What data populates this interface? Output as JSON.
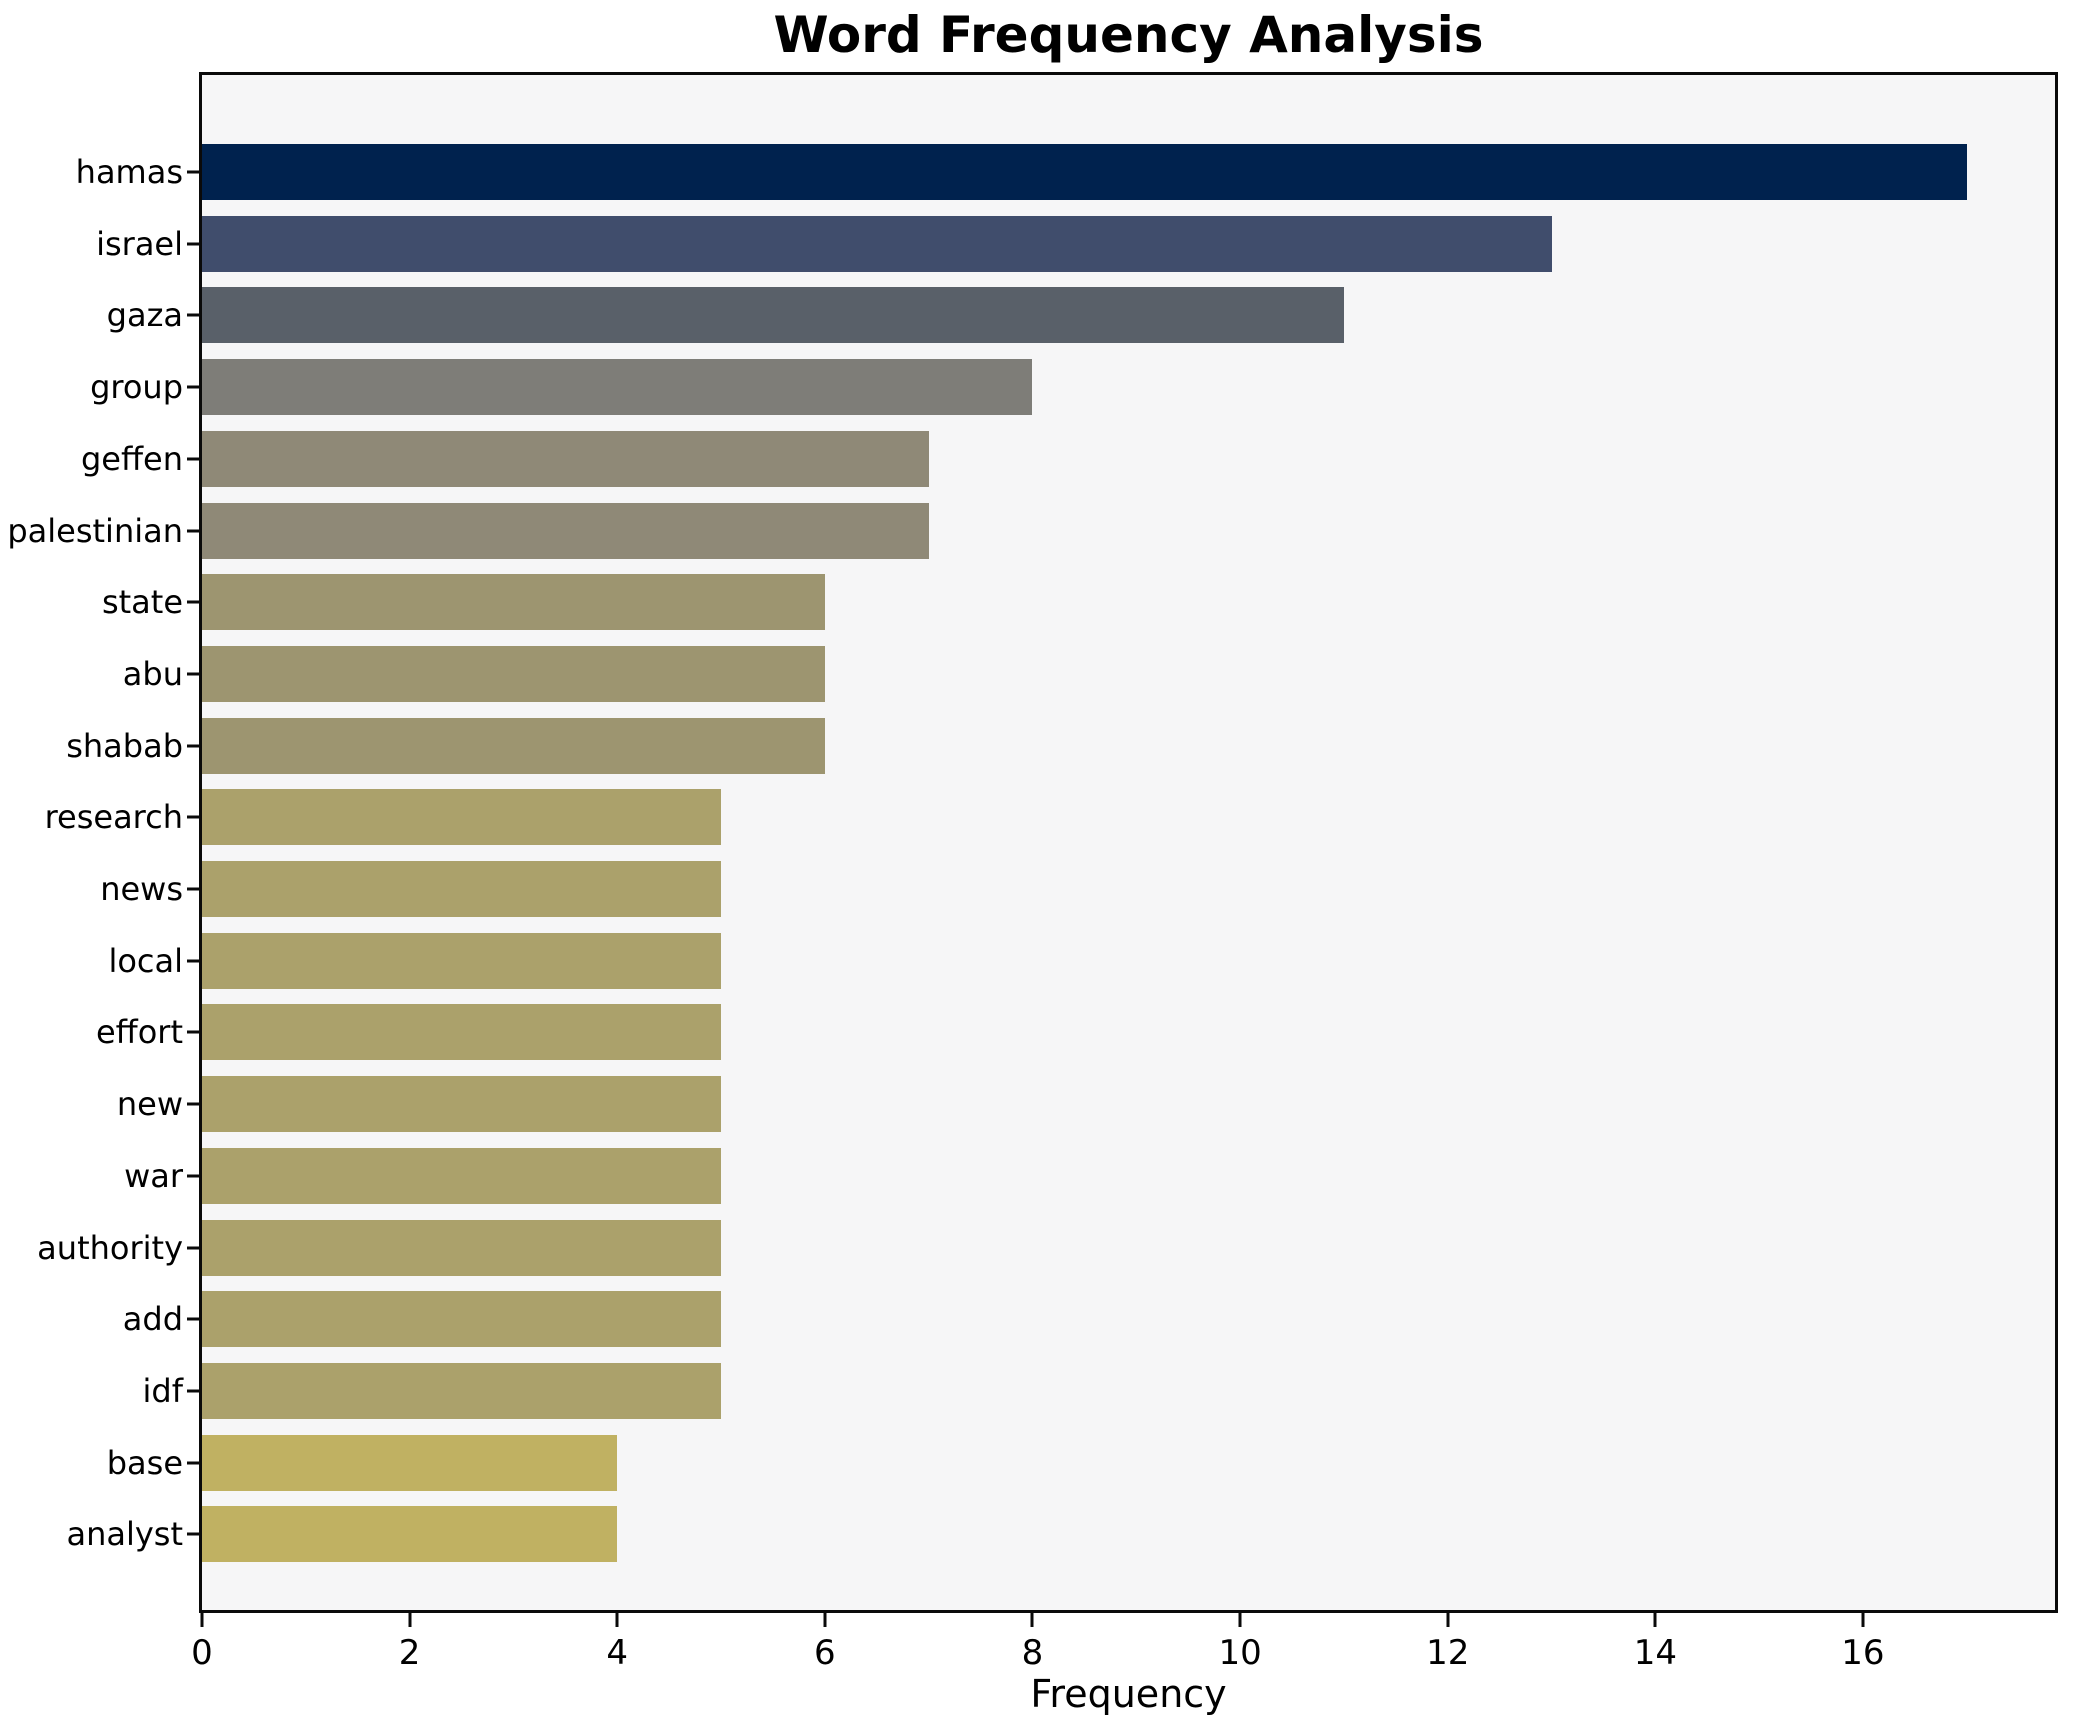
{
  "chart_data": {
    "type": "bar",
    "orientation": "horizontal",
    "title": "Word Frequency Analysis",
    "xlabel": "Frequency",
    "ylabel": "",
    "categories": [
      "hamas",
      "israel",
      "gaza",
      "group",
      "geffen",
      "palestinian",
      "state",
      "abu",
      "shabab",
      "research",
      "news",
      "local",
      "effort",
      "new",
      "war",
      "authority",
      "add",
      "idf",
      "base",
      "analyst"
    ],
    "values": [
      17,
      13,
      11,
      8,
      7,
      7,
      6,
      6,
      6,
      5,
      5,
      5,
      5,
      5,
      5,
      5,
      5,
      5,
      4,
      4
    ],
    "bar_colors": [
      "#00224e",
      "#404d6c",
      "#596069",
      "#7e7d78",
      "#8f8977",
      "#8f8977",
      "#9d9570",
      "#9d9570",
      "#9d9570",
      "#aba16b",
      "#aba16b",
      "#aba16b",
      "#aba16b",
      "#aba16b",
      "#aba16b",
      "#aba16b",
      "#aba16b",
      "#aba16b",
      "#c0b162",
      "#c0b162"
    ],
    "xticks": [
      0,
      2,
      4,
      6,
      8,
      10,
      12,
      14,
      16
    ],
    "xlim": [
      0,
      17.85
    ],
    "grid": false,
    "legend": null,
    "colormap": "cividis",
    "colors": {
      "plot_background": "#f6f6f7",
      "figure_background": "#ffffff",
      "spine": "#0a0a0a",
      "text": "#000000"
    }
  }
}
